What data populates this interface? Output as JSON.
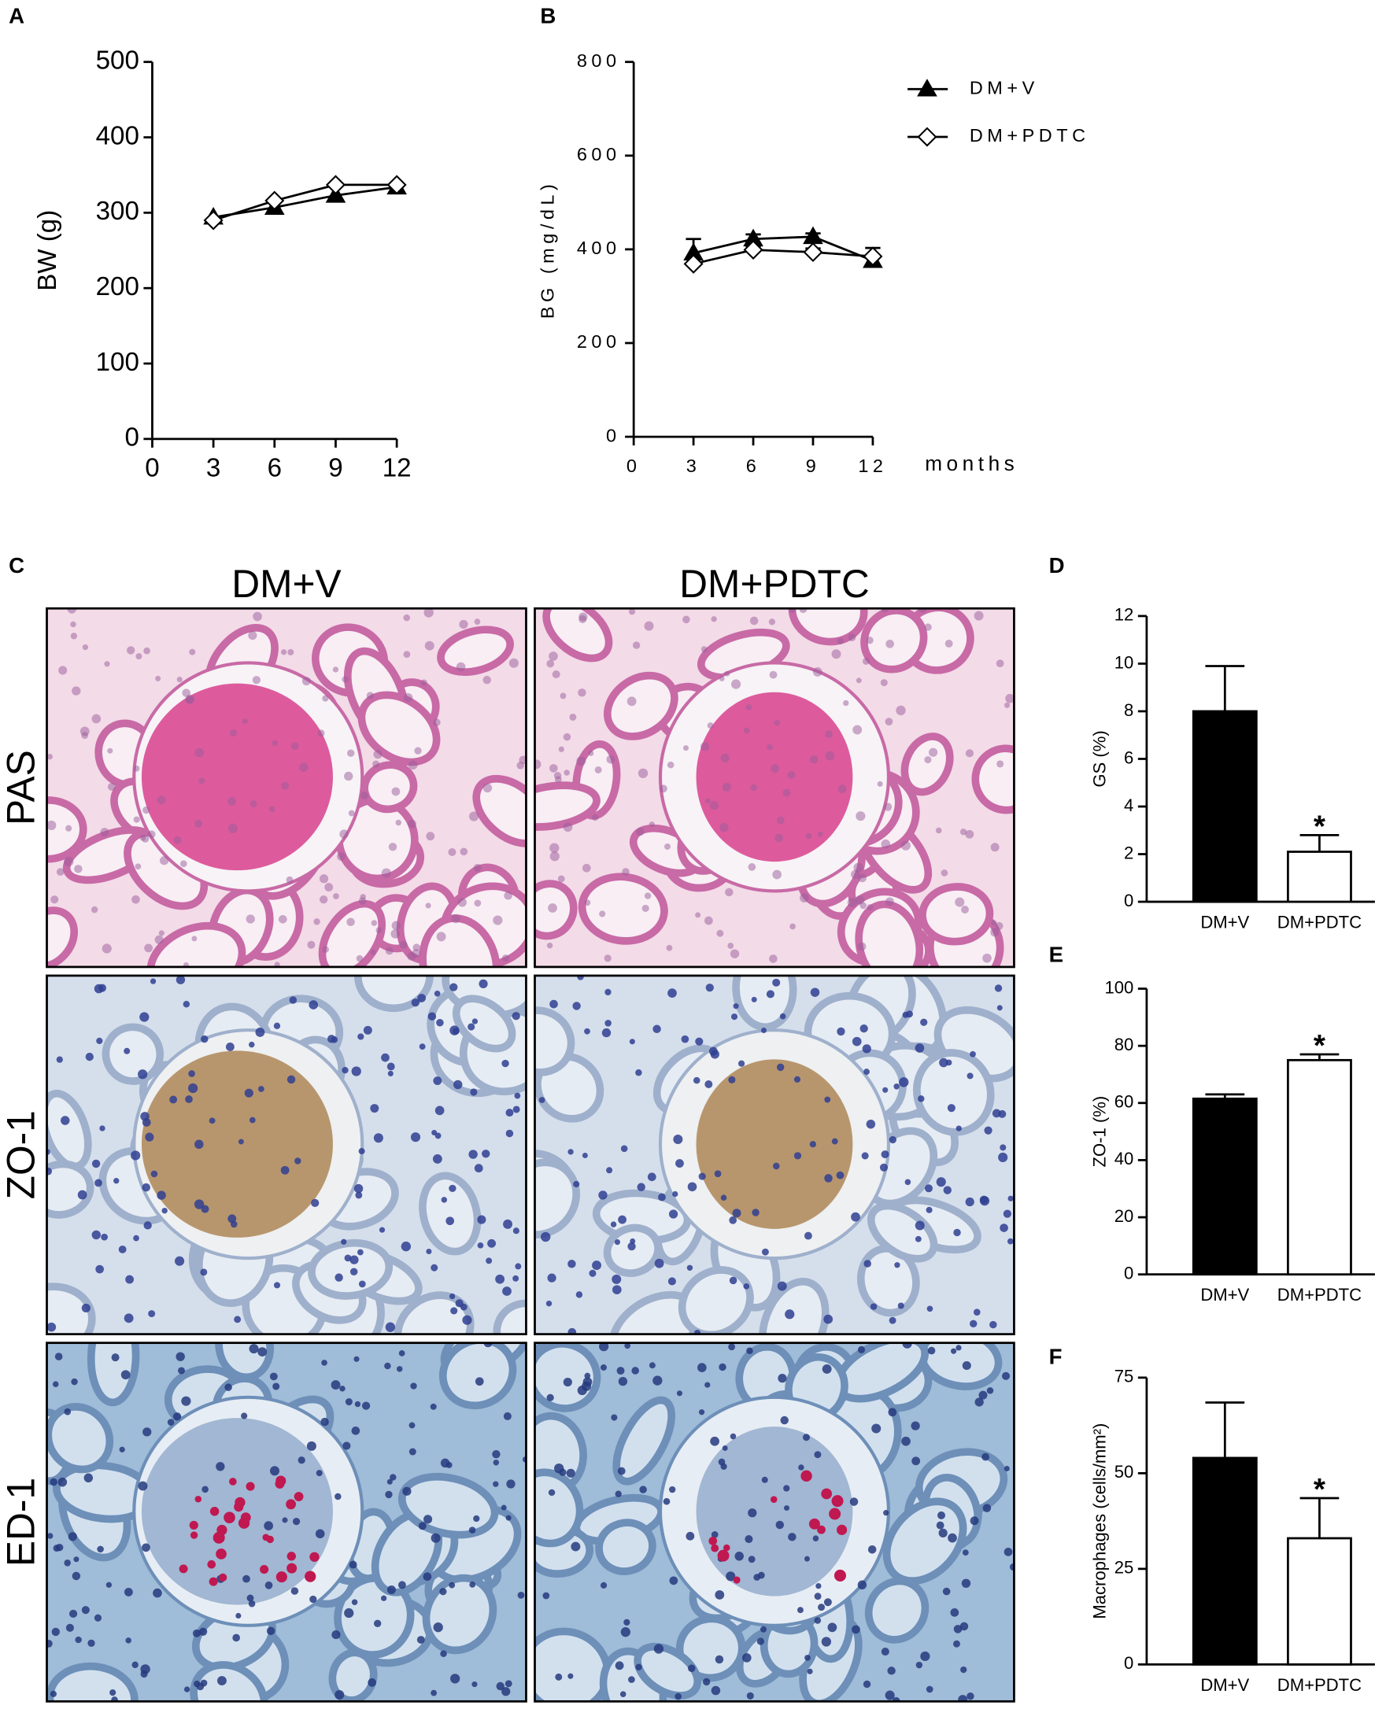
{
  "panel_labels": [
    "A",
    "B",
    "C",
    "D",
    "E",
    "F"
  ],
  "micrographs": {
    "columns": [
      "DM+V",
      "DM+PDTC"
    ],
    "rows": [
      "PAS",
      "ZO-1",
      "ED-1"
    ]
  },
  "chart_data": [
    {
      "type": "line",
      "y_label": "BW (g)",
      "x": [
        3,
        6,
        9,
        12
      ],
      "xlim": [
        0,
        12
      ],
      "xticks": [
        0,
        3,
        6,
        9,
        12
      ],
      "ylim": [
        0,
        500
      ],
      "yticks": [
        0,
        100,
        200,
        300,
        400,
        500
      ],
      "series": [
        {
          "marker": "triangle",
          "color": "#000000",
          "values": [
            294,
            307,
            323,
            334
          ]
        },
        {
          "marker": "diamond",
          "color": "#000000",
          "values": [
            290,
            316,
            337,
            337
          ]
        }
      ]
    },
    {
      "type": "line",
      "y_label": "BG (mg/dL)",
      "x_label": "months",
      "x": [
        3,
        6,
        9,
        12
      ],
      "xlim": [
        0,
        12
      ],
      "xticks": [
        0,
        3,
        6,
        9,
        12
      ],
      "ylim": [
        0,
        800
      ],
      "yticks": [
        0,
        200,
        400,
        600,
        800
      ],
      "legend": "top-right",
      "series": [
        {
          "name": "DM+V",
          "marker": "triangle",
          "color": "#000000",
          "values": [
            392,
            422,
            427,
            376
          ],
          "errors": [
            30,
            10,
            7,
            10
          ]
        },
        {
          "name": "DM+PDTC",
          "marker": "diamond",
          "color": "#000000",
          "values": [
            369,
            399,
            394,
            385
          ],
          "errors": [
            10,
            8,
            8,
            18
          ]
        }
      ]
    },
    {
      "type": "bar",
      "y_label": "GS (%)",
      "categories": [
        "DM+V",
        "DM+PDTC"
      ],
      "values": [
        8.0,
        2.1
      ],
      "errors": [
        1.9,
        0.7
      ],
      "colors": [
        "#000000",
        "#ffffff"
      ],
      "significance": [
        null,
        "*"
      ],
      "ylim": [
        0,
        12
      ],
      "yticks": [
        0,
        2,
        4,
        6,
        8,
        10,
        12
      ]
    },
    {
      "type": "bar",
      "y_label": "ZO-1 (%)",
      "categories": [
        "DM+V",
        "DM+PDTC"
      ],
      "values": [
        61.5,
        75
      ],
      "errors": [
        1.5,
        2
      ],
      "colors": [
        "#000000",
        "#ffffff"
      ],
      "significance": [
        null,
        "*"
      ],
      "ylim": [
        0,
        100
      ],
      "yticks": [
        0,
        20,
        40,
        60,
        80,
        100
      ]
    },
    {
      "type": "bar",
      "y_label": "Macrophages (cells/mm²)",
      "categories": [
        "DM+V",
        "DM+PDTC"
      ],
      "values": [
        54,
        33
      ],
      "errors": [
        14.5,
        10.5
      ],
      "colors": [
        "#000000",
        "#ffffff"
      ],
      "significance": [
        null,
        "*"
      ],
      "ylim": [
        0,
        75
      ],
      "yticks": [
        0,
        25,
        50,
        75
      ]
    }
  ]
}
